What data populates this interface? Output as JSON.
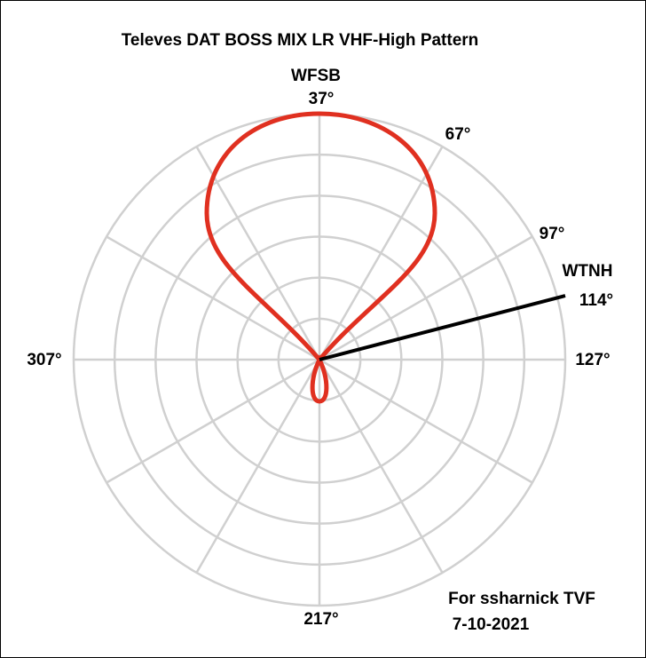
{
  "title": "Televes DAT BOSS MIX LR VHF-High Pattern",
  "stations": [
    {
      "name": "WFSB",
      "angle": "37°"
    },
    {
      "name": "WTNH",
      "angle": "114°"
    }
  ],
  "angle_labels": [
    "67°",
    "97°",
    "127°",
    "217°",
    "307°"
  ],
  "footer": {
    "author": "For ssharnick TVF",
    "date": "7-10-2021"
  }
}
